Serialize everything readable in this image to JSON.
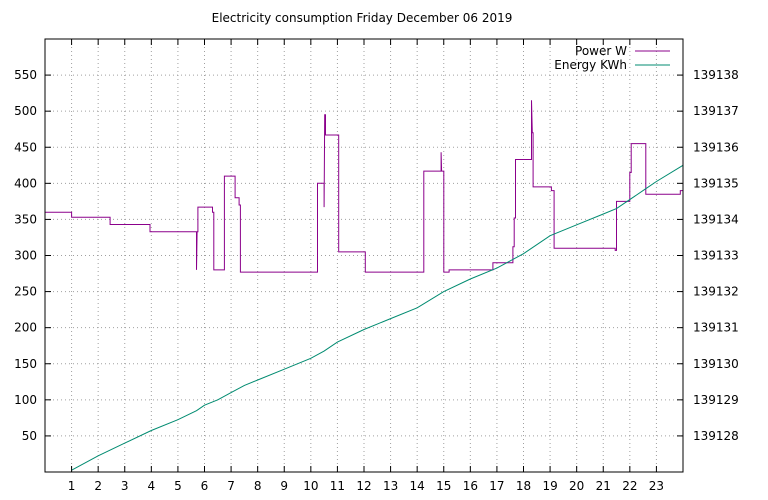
{
  "chart_data": {
    "type": "line",
    "title": "Electricity consumption Friday December 06 2019",
    "xlabel": "",
    "ylabel": "",
    "xlim": [
      0,
      24
    ],
    "ylim": [
      0,
      600
    ],
    "y2lim": [
      139127,
      139139
    ],
    "x_ticks": [
      1,
      2,
      3,
      4,
      5,
      6,
      7,
      8,
      9,
      10,
      11,
      12,
      13,
      14,
      15,
      16,
      17,
      18,
      19,
      20,
      21,
      22,
      23
    ],
    "y_ticks": [
      50,
      100,
      150,
      200,
      250,
      300,
      350,
      400,
      450,
      500,
      550
    ],
    "y2_ticks": [
      139128,
      139129,
      139130,
      139131,
      139132,
      139133,
      139134,
      139135,
      139136,
      139137,
      139138
    ],
    "grid": true,
    "legend": "top-right",
    "series": [
      {
        "name": "Power W",
        "axis": "y",
        "color": "#8b008b",
        "points": [
          [
            0.0,
            360
          ],
          [
            1.0,
            360
          ],
          [
            1.0,
            353
          ],
          [
            2.45,
            353
          ],
          [
            2.45,
            343
          ],
          [
            3.95,
            343
          ],
          [
            3.95,
            333
          ],
          [
            5.7,
            333
          ],
          [
            5.7,
            280
          ],
          [
            5.72,
            333
          ],
          [
            5.75,
            333
          ],
          [
            5.75,
            367
          ],
          [
            6.3,
            367
          ],
          [
            6.3,
            360
          ],
          [
            6.35,
            360
          ],
          [
            6.35,
            280
          ],
          [
            6.75,
            280
          ],
          [
            6.75,
            410
          ],
          [
            7.15,
            410
          ],
          [
            7.15,
            380
          ],
          [
            7.3,
            380
          ],
          [
            7.3,
            370
          ],
          [
            7.35,
            370
          ],
          [
            7.35,
            277
          ],
          [
            10.25,
            277
          ],
          [
            10.25,
            400
          ],
          [
            10.5,
            400
          ],
          [
            10.5,
            367
          ],
          [
            10.52,
            495
          ],
          [
            10.55,
            495
          ],
          [
            10.55,
            467
          ],
          [
            11.05,
            467
          ],
          [
            11.05,
            305
          ],
          [
            12.05,
            305
          ],
          [
            12.05,
            277
          ],
          [
            14.25,
            277
          ],
          [
            14.25,
            417
          ],
          [
            14.9,
            417
          ],
          [
            14.9,
            443
          ],
          [
            14.92,
            417
          ],
          [
            15.0,
            417
          ],
          [
            15.0,
            277
          ],
          [
            15.2,
            277
          ],
          [
            15.2,
            280
          ],
          [
            16.85,
            280
          ],
          [
            16.85,
            290
          ],
          [
            17.6,
            290
          ],
          [
            17.6,
            312
          ],
          [
            17.65,
            312
          ],
          [
            17.65,
            352
          ],
          [
            17.7,
            352
          ],
          [
            17.7,
            433
          ],
          [
            18.3,
            433
          ],
          [
            18.3,
            515
          ],
          [
            18.33,
            470
          ],
          [
            18.36,
            470
          ],
          [
            18.36,
            395
          ],
          [
            19.05,
            395
          ],
          [
            19.05,
            390
          ],
          [
            19.15,
            390
          ],
          [
            19.15,
            310
          ],
          [
            21.45,
            310
          ],
          [
            21.45,
            307
          ],
          [
            21.5,
            307
          ],
          [
            21.5,
            375
          ],
          [
            22.0,
            375
          ],
          [
            22.0,
            415
          ],
          [
            22.05,
            415
          ],
          [
            22.05,
            455
          ],
          [
            22.6,
            455
          ],
          [
            22.6,
            385
          ],
          [
            23.9,
            385
          ],
          [
            23.9,
            390
          ],
          [
            24.0,
            390
          ]
        ]
      },
      {
        "name": "Energy KWh",
        "axis": "y2",
        "color": "#008b70",
        "points": [
          [
            1.0,
            139127.05
          ],
          [
            2.0,
            139127.45
          ],
          [
            3.0,
            139127.8
          ],
          [
            4.0,
            139128.15
          ],
          [
            5.0,
            139128.45
          ],
          [
            5.7,
            139128.7
          ],
          [
            6.0,
            139128.85
          ],
          [
            6.5,
            139129.0
          ],
          [
            7.0,
            139129.2
          ],
          [
            7.5,
            139129.4
          ],
          [
            8.0,
            139129.55
          ],
          [
            9.0,
            139129.85
          ],
          [
            10.0,
            139130.15
          ],
          [
            10.5,
            139130.35
          ],
          [
            11.0,
            139130.6
          ],
          [
            12.0,
            139130.95
          ],
          [
            13.0,
            139131.25
          ],
          [
            14.0,
            139131.55
          ],
          [
            15.0,
            139132.0
          ],
          [
            16.0,
            139132.35
          ],
          [
            17.0,
            139132.65
          ],
          [
            18.0,
            139133.05
          ],
          [
            19.0,
            139133.55
          ],
          [
            20.0,
            139133.85
          ],
          [
            21.0,
            139134.15
          ],
          [
            21.5,
            139134.3
          ],
          [
            22.0,
            139134.55
          ],
          [
            22.6,
            139134.85
          ],
          [
            23.0,
            139135.05
          ],
          [
            24.0,
            139135.5
          ]
        ]
      }
    ]
  }
}
